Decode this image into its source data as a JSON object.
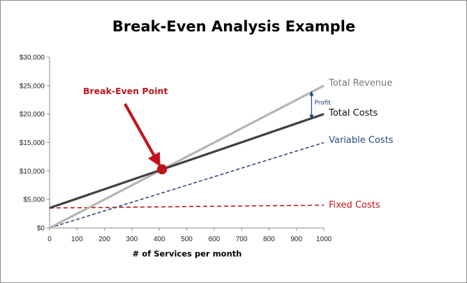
{
  "chart_data": {
    "type": "line",
    "title": "Break-Even Analysis Example",
    "xlabel": "# of Services per month",
    "ylabel": "",
    "xlim": [
      0,
      1000
    ],
    "ylim": [
      0,
      30000
    ],
    "x_ticks": [
      "0",
      "100",
      "200",
      "300",
      "400",
      "500",
      "600",
      "700",
      "800",
      "900",
      "1000"
    ],
    "y_ticks": [
      "$0",
      "$5,000",
      "$10,000",
      "$15,000",
      "$20,000",
      "$25,000",
      "$30,000"
    ],
    "grid": false,
    "series": [
      {
        "name": "Total Revenue",
        "x": [
          0,
          1000
        ],
        "y": [
          0,
          25000
        ],
        "color": "#b4b4b4",
        "style": "solid"
      },
      {
        "name": "Total Costs",
        "x": [
          0,
          1000
        ],
        "y": [
          3500,
          20000
        ],
        "color": "#404040",
        "style": "solid"
      },
      {
        "name": "Variable Costs",
        "x": [
          0,
          1000
        ],
        "y": [
          0,
          15000
        ],
        "color": "#2e4a7a",
        "style": "dashed"
      },
      {
        "name": "Fixed Costs",
        "x": [
          0,
          1000
        ],
        "y": [
          3500,
          4000
        ],
        "color": "#c0141c",
        "style": "dashed"
      }
    ],
    "annotations": {
      "break_even": {
        "label": "Break-Even Point",
        "x": 410,
        "y": 10300,
        "color": "#c0141c"
      },
      "profit": {
        "label": "Profit",
        "x": 955,
        "y_top": 23900,
        "y_bottom": 19200,
        "color": "#1f3f7a"
      }
    }
  }
}
